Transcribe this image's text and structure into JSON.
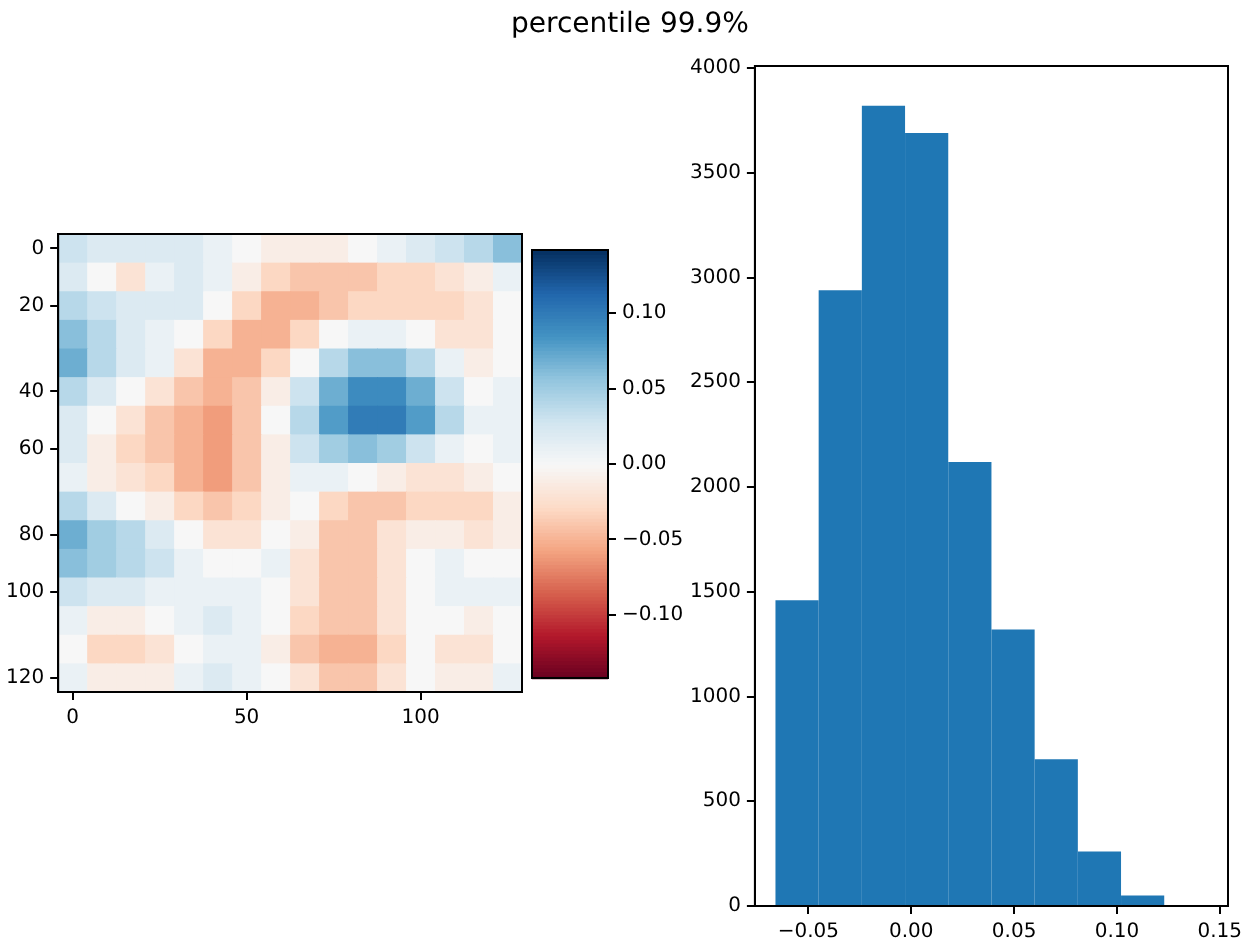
{
  "chart_data": [
    {
      "type": "heatmap",
      "title": "percentile 99.9%",
      "categories": [
        "0",
        null,
        null,
        null,
        null,
        null,
        "50",
        null,
        null,
        null,
        null,
        null,
        "100",
        null,
        null,
        null
      ],
      "y_categories": [
        "0",
        null,
        "20",
        null,
        null,
        "40",
        null,
        "60",
        null,
        null,
        "80",
        null,
        "100",
        null,
        null,
        "120"
      ],
      "cells": [
        [
          0.03,
          0.02,
          0.02,
          0.02,
          0.02,
          0.01,
          0.0,
          -0.01,
          -0.01,
          -0.01,
          0.0,
          0.01,
          0.02,
          0.03,
          0.04,
          0.06
        ],
        [
          0.02,
          0.0,
          -0.02,
          0.01,
          0.02,
          0.01,
          -0.01,
          -0.03,
          -0.04,
          -0.04,
          -0.04,
          -0.03,
          -0.03,
          -0.02,
          -0.01,
          0.01
        ],
        [
          0.04,
          0.03,
          0.02,
          0.02,
          0.02,
          0.0,
          -0.03,
          -0.05,
          -0.05,
          -0.04,
          -0.03,
          -0.03,
          -0.03,
          -0.03,
          -0.02,
          0.0
        ],
        [
          0.06,
          0.04,
          0.02,
          0.01,
          0.0,
          -0.03,
          -0.05,
          -0.05,
          -0.03,
          0.0,
          0.01,
          0.01,
          0.0,
          -0.02,
          -0.02,
          0.0
        ],
        [
          0.07,
          0.04,
          0.02,
          0.01,
          -0.02,
          -0.05,
          -0.05,
          -0.03,
          0.0,
          0.04,
          0.06,
          0.06,
          0.04,
          0.01,
          -0.01,
          0.0
        ],
        [
          0.04,
          0.02,
          0.0,
          -0.02,
          -0.04,
          -0.05,
          -0.04,
          -0.01,
          0.03,
          0.07,
          0.09,
          0.09,
          0.07,
          0.03,
          0.0,
          0.01
        ],
        [
          0.02,
          0.0,
          -0.02,
          -0.04,
          -0.05,
          -0.06,
          -0.04,
          0.0,
          0.04,
          0.08,
          0.1,
          0.1,
          0.08,
          0.04,
          0.01,
          0.01
        ],
        [
          0.02,
          -0.01,
          -0.03,
          -0.04,
          -0.05,
          -0.06,
          -0.04,
          -0.01,
          0.03,
          0.05,
          0.06,
          0.05,
          0.03,
          0.01,
          0.0,
          0.01
        ],
        [
          0.01,
          -0.01,
          -0.02,
          -0.03,
          -0.05,
          -0.06,
          -0.04,
          -0.01,
          0.01,
          0.01,
          0.0,
          -0.01,
          -0.02,
          -0.02,
          -0.01,
          0.0
        ],
        [
          0.04,
          0.02,
          0.0,
          -0.01,
          -0.03,
          -0.04,
          -0.03,
          -0.01,
          0.0,
          -0.03,
          -0.04,
          -0.04,
          -0.03,
          -0.03,
          -0.03,
          -0.01
        ],
        [
          0.07,
          0.05,
          0.04,
          0.02,
          0.0,
          -0.02,
          -0.02,
          0.0,
          -0.01,
          -0.04,
          -0.04,
          -0.02,
          -0.01,
          -0.01,
          -0.02,
          -0.01
        ],
        [
          0.06,
          0.05,
          0.04,
          0.03,
          0.01,
          0.0,
          0.0,
          0.01,
          -0.02,
          -0.04,
          -0.04,
          -0.02,
          0.0,
          0.01,
          0.0,
          0.0
        ],
        [
          0.03,
          0.02,
          0.02,
          0.01,
          0.01,
          0.01,
          0.01,
          0.0,
          -0.02,
          -0.04,
          -0.04,
          -0.02,
          0.0,
          0.01,
          0.01,
          0.01
        ],
        [
          0.01,
          -0.01,
          -0.01,
          0.0,
          0.01,
          0.02,
          0.01,
          0.0,
          -0.03,
          -0.04,
          -0.04,
          -0.02,
          0.0,
          0.0,
          -0.01,
          0.0
        ],
        [
          0.0,
          -0.03,
          -0.03,
          -0.02,
          0.0,
          0.01,
          0.01,
          -0.01,
          -0.04,
          -0.05,
          -0.05,
          -0.03,
          0.0,
          -0.02,
          -0.02,
          0.0
        ],
        [
          0.01,
          -0.01,
          -0.01,
          -0.01,
          0.01,
          0.02,
          0.01,
          0.0,
          -0.02,
          -0.04,
          -0.04,
          -0.02,
          0.0,
          -0.01,
          -0.01,
          0.01
        ]
      ],
      "clim": [
        -0.142,
        0.142
      ],
      "cticks": [
        {
          "value": -0.1,
          "label": "−0.10"
        },
        {
          "value": -0.05,
          "label": "−0.05"
        },
        {
          "value": 0,
          "label": "0.00"
        },
        {
          "value": 0.05,
          "label": "0.05"
        },
        {
          "value": 0.1,
          "label": "0.10"
        }
      ]
    },
    {
      "type": "histogram",
      "bins": [
        -0.066,
        -0.045,
        -0.024,
        -0.003,
        0.018,
        0.039,
        0.06,
        0.081,
        0.102,
        0.123,
        0.144
      ],
      "values": [
        1460,
        2940,
        3820,
        3690,
        2120,
        1320,
        700,
        260,
        50,
        0
      ],
      "color": "#1f77b4",
      "xlim": [
        -0.076,
        0.154
      ],
      "xticks": [
        {
          "value": -0.05,
          "label": "−0.05"
        },
        {
          "value": 0,
          "label": "0.00"
        },
        {
          "value": 0.05,
          "label": "0.05"
        },
        {
          "value": 0.1,
          "label": "0.10"
        },
        {
          "value": 0.15,
          "label": "0.15"
        }
      ],
      "ylim": [
        0,
        4010
      ],
      "yticks": [
        0,
        500,
        1000,
        1500,
        2000,
        2500,
        3000,
        3500,
        4000
      ]
    }
  ]
}
